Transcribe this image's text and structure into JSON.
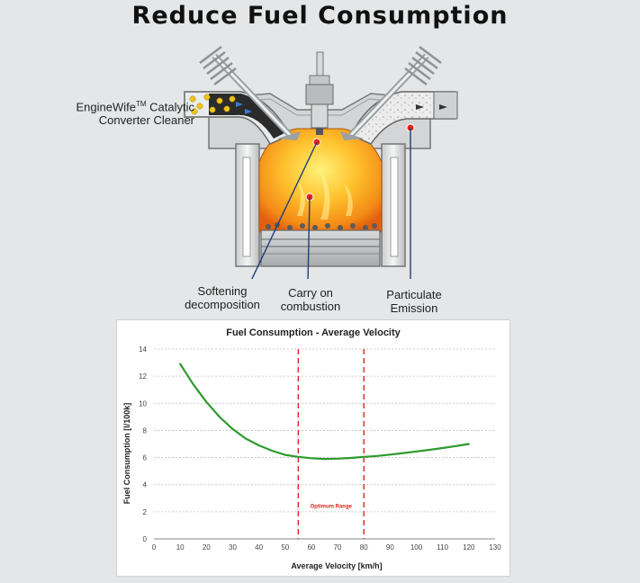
{
  "title": "Reduce Fuel Consumption",
  "callouts": {
    "product_name": "EngineWife",
    "product_tm": "TM",
    "product_line1_rest": " Catalytic",
    "product_line2": "Converter Cleaner",
    "softening_line1": "Softening",
    "softening_line2": "decomposition",
    "combustion_line1": "Carry on",
    "combustion_line2": "combustion",
    "particulate_line1": "Particulate",
    "particulate_line2": "Emission"
  },
  "colors": {
    "curve": "#2e9a2e",
    "optimum": "#d9261c",
    "flame_core": "#ffd84a",
    "flame_edge": "#f07a12",
    "callout_line": "#1f3f7a"
  },
  "chart_data": {
    "type": "line",
    "title": "Fuel Consumption - Average Velocity",
    "xlabel": "Average Velocity [km/h]",
    "ylabel": "Fuel Consumption [l/100k]",
    "xlim": [
      0,
      130
    ],
    "ylim": [
      0,
      14
    ],
    "xticks": [
      0,
      10,
      20,
      30,
      40,
      50,
      60,
      70,
      80,
      90,
      100,
      110,
      120,
      130
    ],
    "yticks": [
      0,
      2,
      4,
      6,
      8,
      10,
      12,
      14
    ],
    "grid": "horizontal-dashed",
    "series": [
      {
        "x": [
          10,
          15,
          20,
          25,
          30,
          35,
          40,
          45,
          50,
          55,
          60,
          65,
          70,
          75,
          80,
          85,
          90,
          95,
          100,
          105,
          110,
          115,
          120
        ],
        "y": [
          12.9,
          11.4,
          10.1,
          9.0,
          8.1,
          7.4,
          6.9,
          6.5,
          6.2,
          6.05,
          5.95,
          5.9,
          5.92,
          5.97,
          6.05,
          6.12,
          6.22,
          6.33,
          6.45,
          6.57,
          6.7,
          6.85,
          7.0
        ]
      }
    ],
    "annotations": {
      "optimum_lines": [
        55,
        80
      ],
      "optimum_label": "Optimum Range"
    }
  }
}
